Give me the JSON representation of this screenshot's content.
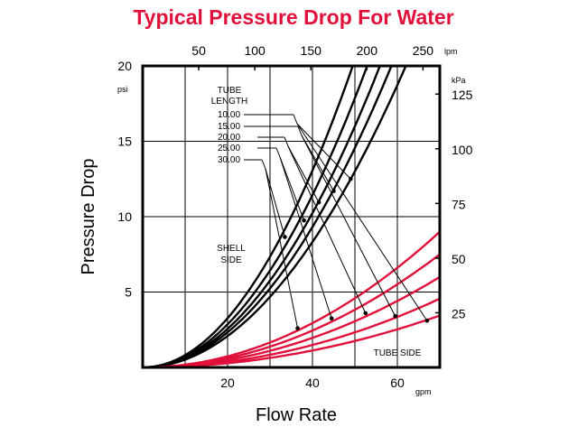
{
  "chart_data": {
    "type": "line",
    "title": "Typical Pressure Drop For Water",
    "xlabel": "Flow Rate",
    "ylabel": "Pressure Drop",
    "x_unit": "gpm",
    "y_unit": "psi",
    "xlim": [
      0,
      70
    ],
    "ylim": [
      0,
      20
    ],
    "x_ticks": [
      20,
      40,
      60
    ],
    "y_ticks": [
      5,
      10,
      15,
      20
    ],
    "x2_unit": "lpm",
    "x2_ticks": [
      50,
      100,
      150,
      200,
      250
    ],
    "y2_unit": "kPa",
    "y2_ticks": [
      25,
      50,
      75,
      100,
      125
    ],
    "legend_title": "TUBE\nLENGTH",
    "legend_lines": [
      "TUBE",
      "LENGTH"
    ],
    "tube_lengths": [
      "10.00",
      "15.00",
      "20.00",
      "25.00",
      "30.00"
    ],
    "shell_label_lines": [
      "SHELL",
      "SIDE"
    ],
    "tube_label": "TUBE SIDE",
    "series": [
      {
        "name": "Shell side 10.00",
        "group": "shell",
        "color": "#000000",
        "x": [
          0,
          10,
          20,
          30,
          40,
          49.5
        ],
        "y": [
          0,
          0.82,
          3.27,
          7.36,
          13.09,
          20
        ]
      },
      {
        "name": "Shell side 15.00",
        "group": "shell",
        "color": "#000000",
        "x": [
          0,
          10,
          20,
          30,
          40,
          52.9
        ],
        "y": [
          0,
          0.72,
          2.86,
          6.44,
          11.45,
          20
        ]
      },
      {
        "name": "Shell side 20.00",
        "group": "shell",
        "color": "#000000",
        "x": [
          0,
          10,
          20,
          30,
          40,
          55.9
        ],
        "y": [
          0,
          0.64,
          2.56,
          5.76,
          10.24,
          20
        ]
      },
      {
        "name": "Shell side 25.00",
        "group": "shell",
        "color": "#000000",
        "x": [
          0,
          10,
          20,
          30,
          40,
          58.6
        ],
        "y": [
          0,
          0.58,
          2.33,
          5.24,
          9.32,
          20
        ]
      },
      {
        "name": "Shell side 30.00",
        "group": "shell",
        "color": "#000000",
        "x": [
          0,
          10,
          20,
          30,
          40,
          62.0
        ],
        "y": [
          0,
          0.52,
          2.08,
          4.68,
          8.32,
          20
        ]
      },
      {
        "name": "Tube side 10.00",
        "group": "tube",
        "color": "#e0103a",
        "x": [
          0,
          10,
          20,
          30,
          40,
          50,
          60,
          70
        ],
        "y": [
          0,
          0.19,
          0.73,
          1.65,
          2.94,
          4.59,
          6.61,
          9.0
        ]
      },
      {
        "name": "Tube side 15.00",
        "group": "tube",
        "color": "#e0103a",
        "x": [
          0,
          10,
          20,
          30,
          40,
          50,
          60,
          70
        ],
        "y": [
          0,
          0.15,
          0.61,
          1.38,
          2.45,
          3.83,
          5.51,
          7.5
        ]
      },
      {
        "name": "Tube side 20.00",
        "group": "tube",
        "color": "#e0103a",
        "x": [
          0,
          10,
          20,
          30,
          40,
          50,
          60,
          70
        ],
        "y": [
          0,
          0.12,
          0.49,
          1.1,
          1.96,
          3.06,
          4.41,
          6.0
        ]
      },
      {
        "name": "Tube side 25.00",
        "group": "tube",
        "color": "#e0103a",
        "x": [
          0,
          10,
          20,
          30,
          40,
          50,
          60,
          70
        ],
        "y": [
          0,
          0.09,
          0.37,
          0.84,
          1.49,
          2.33,
          3.35,
          4.56
        ]
      },
      {
        "name": "Tube side 30.00",
        "group": "tube",
        "color": "#e0103a",
        "x": [
          0,
          10,
          20,
          30,
          40,
          50,
          60,
          70
        ],
        "y": [
          0,
          0.07,
          0.28,
          0.63,
          1.12,
          1.76,
          2.53,
          3.44
        ]
      }
    ],
    "callout_points": {
      "shell": [
        {
          "x": 49.0,
          "y": 12.5
        },
        {
          "x": 45.0,
          "y": 11.7
        },
        {
          "x": 41.5,
          "y": 10.95
        },
        {
          "x": 38.0,
          "y": 9.75
        },
        {
          "x": 33.5,
          "y": 8.65
        }
      ],
      "tube": [
        {
          "x": 67.0,
          "y": 3.1
        },
        {
          "x": 59.5,
          "y": 3.4
        },
        {
          "x": 52.5,
          "y": 3.6
        },
        {
          "x": 44.5,
          "y": 3.25
        },
        {
          "x": 36.5,
          "y": 2.6
        }
      ]
    },
    "grid": true
  }
}
